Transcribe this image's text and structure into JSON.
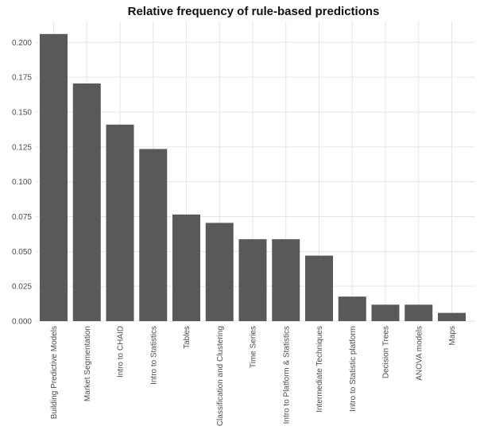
{
  "chart_data": {
    "type": "bar",
    "title": "Relative frequency of rule-based predictions",
    "xlabel": "",
    "ylabel": "",
    "categories": [
      "Building Predictive Models",
      "Market Segmentation",
      "Intro to CHAID",
      "Intro to Statistics",
      "Tables",
      "Classification and Clustering",
      "Time Series",
      "Intro to Platform & Statistics",
      "Intermediate Techniques",
      "Intro to Statistic platform",
      "Decision Trees",
      "ANOVA models",
      "Maps"
    ],
    "values": [
      0.206,
      0.1705,
      0.141,
      0.1235,
      0.0765,
      0.0705,
      0.0588,
      0.0588,
      0.047,
      0.0176,
      0.0118,
      0.0118,
      0.0059
    ],
    "ylim": [
      0,
      0.215
    ],
    "yticks": [
      "0.000",
      "0.025",
      "0.050",
      "0.075",
      "0.100",
      "0.125",
      "0.150",
      "0.175",
      "0.200"
    ],
    "grid": true,
    "bar_color": "#595959",
    "legend": "none"
  }
}
